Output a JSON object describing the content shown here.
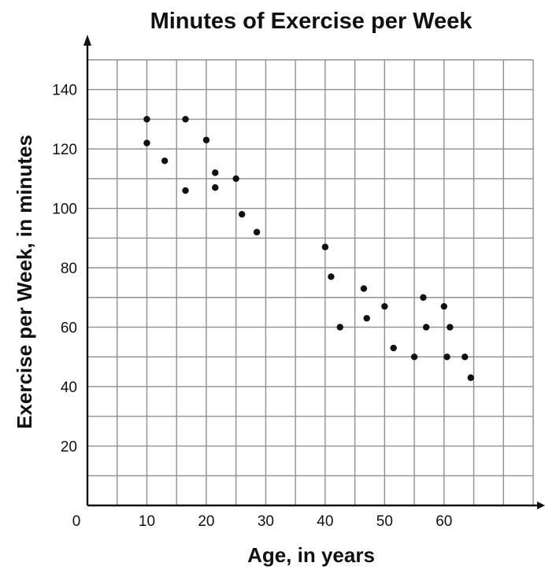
{
  "chart_data": {
    "type": "scatter",
    "title": "Minutes of Exercise per Week",
    "xlabel": "Age, in years",
    "ylabel": "Exercise per Week, in minutes",
    "origin_label": "0",
    "xlim": [
      0,
      75
    ],
    "ylim": [
      0,
      150
    ],
    "x_grid_step": 5,
    "y_grid_step": 10,
    "x_ticks": [
      10,
      20,
      30,
      40,
      50,
      60
    ],
    "y_ticks": [
      20,
      40,
      60,
      80,
      100,
      120,
      140
    ],
    "grid": true,
    "points": [
      {
        "x": 10,
        "y": 130
      },
      {
        "x": 10,
        "y": 122
      },
      {
        "x": 13,
        "y": 116
      },
      {
        "x": 16.5,
        "y": 130
      },
      {
        "x": 16.5,
        "y": 106
      },
      {
        "x": 20,
        "y": 123
      },
      {
        "x": 21.5,
        "y": 112
      },
      {
        "x": 21.5,
        "y": 107
      },
      {
        "x": 25,
        "y": 110
      },
      {
        "x": 26,
        "y": 98
      },
      {
        "x": 28.5,
        "y": 92
      },
      {
        "x": 40,
        "y": 87
      },
      {
        "x": 41,
        "y": 77
      },
      {
        "x": 42.5,
        "y": 60
      },
      {
        "x": 46.5,
        "y": 73
      },
      {
        "x": 47,
        "y": 63
      },
      {
        "x": 50,
        "y": 67
      },
      {
        "x": 51.5,
        "y": 53
      },
      {
        "x": 55,
        "y": 50
      },
      {
        "x": 56.5,
        "y": 70
      },
      {
        "x": 57,
        "y": 60
      },
      {
        "x": 60,
        "y": 67
      },
      {
        "x": 60.5,
        "y": 50
      },
      {
        "x": 61,
        "y": 60
      },
      {
        "x": 63.5,
        "y": 50
      },
      {
        "x": 64.5,
        "y": 43
      }
    ]
  }
}
